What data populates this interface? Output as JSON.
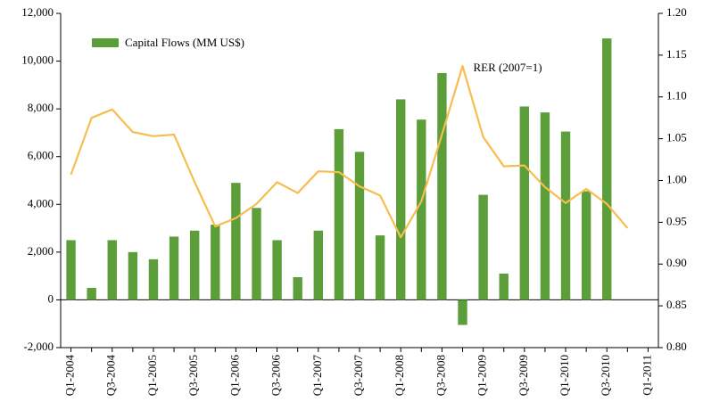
{
  "chart_data": {
    "type": "bar-line",
    "categories": [
      "Q1-2004",
      null,
      "Q3-2004",
      null,
      "Q1-2005",
      null,
      "Q3-2005",
      null,
      "Q1-2006",
      null,
      "Q3-2006",
      null,
      "Q1-2007",
      null,
      "Q3-2007",
      null,
      "Q1-2008",
      null,
      "Q3-2008",
      null,
      "Q1-2009",
      null,
      "Q3-2009",
      null,
      "Q1-2010",
      null,
      "Q3-2010",
      null,
      "Q1-2011"
    ],
    "series": [
      {
        "name": "Capital Flows (MM US$)",
        "type": "bar",
        "color": "#5b9e3a",
        "values": [
          2500,
          500,
          2500,
          2000,
          1700,
          2650,
          2900,
          3150,
          4900,
          3850,
          2500,
          950,
          2900,
          7150,
          6200,
          2700,
          8400,
          7550,
          9500,
          -1050,
          4400,
          1100,
          8100,
          7850,
          7050,
          4550,
          10950,
          null,
          null
        ]
      },
      {
        "name": "RER (2007=1)",
        "type": "line",
        "axis": "y2",
        "color": "#f7bd4e",
        "values": [
          1.007,
          1.075,
          1.085,
          1.058,
          1.053,
          1.055,
          0.998,
          0.945,
          0.955,
          0.972,
          0.998,
          0.985,
          1.011,
          1.01,
          0.993,
          0.982,
          0.932,
          0.975,
          1.055,
          1.137,
          1.052,
          1.017,
          1.018,
          0.992,
          0.973,
          0.99,
          0.972,
          0.943,
          null
        ]
      }
    ],
    "ylim": [
      -2000,
      12000
    ],
    "yticks": [
      {
        "value": -2000,
        "label": "-2,000"
      },
      0,
      {
        "value": 2000,
        "label": "2,000"
      },
      {
        "value": 4000,
        "label": "4,000"
      },
      {
        "value": 6000,
        "label": "6,000"
      },
      {
        "value": 8000,
        "label": "8,000"
      },
      {
        "value": 10000,
        "label": "10,000"
      },
      {
        "value": 12000,
        "label": "12,000"
      }
    ],
    "y2lim": [
      0.8,
      1.2
    ],
    "y2ticks": [
      {
        "value": 0.8,
        "label": "0.80"
      },
      0.85,
      {
        "value": 0.9,
        "label": "0.90"
      },
      0.95,
      {
        "value": 1.0,
        "label": "1.00"
      },
      1.05,
      {
        "value": 1.1,
        "label": "1.10"
      },
      1.15,
      {
        "value": 1.2,
        "label": "1.20"
      }
    ],
    "legend": "upper left"
  }
}
